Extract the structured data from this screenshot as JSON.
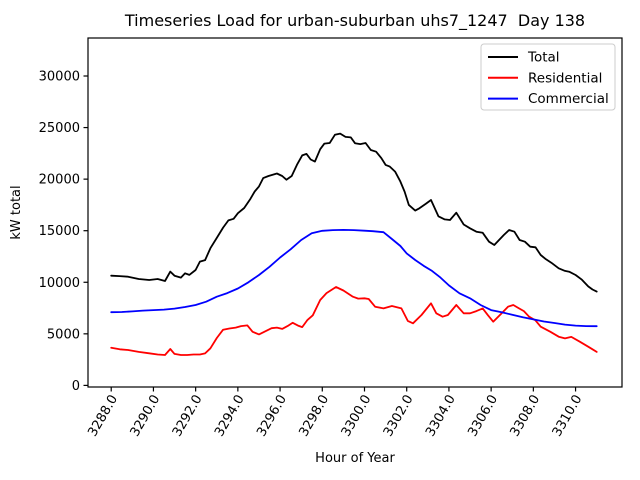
{
  "chart_data": {
    "type": "line",
    "title": "Timeseries Load for urban-suburban uhs7_1247  Day 138",
    "xlabel": "Hour of Year",
    "ylabel": "kW total",
    "xlim": [
      3286.9,
      3312.2
    ],
    "ylim": [
      -155,
      33685
    ],
    "grid": false,
    "x_ticks": [
      3288,
      3290,
      3292,
      3294,
      3296,
      3298,
      3300,
      3302,
      3304,
      3306,
      3308,
      3310
    ],
    "x_tick_labels": [
      "3288.0",
      "3290.0",
      "3292.0",
      "3294.0",
      "3296.0",
      "3298.0",
      "3300.0",
      "3302.0",
      "3304.0",
      "3306.0",
      "3308.0",
      "3310.0"
    ],
    "y_ticks": [
      0,
      5000,
      10000,
      15000,
      20000,
      25000,
      30000
    ],
    "y_tick_labels": [
      "0",
      "5000",
      "10000",
      "15000",
      "20000",
      "25000",
      "30000"
    ],
    "legend": {
      "position": "upper right",
      "entries": [
        "Total",
        "Residential",
        "Commercial"
      ]
    },
    "series": [
      {
        "name": "Total",
        "color": "#000000",
        "points": [
          [
            3288,
            10640
          ],
          [
            3288.4,
            10600
          ],
          [
            3288.8,
            10540
          ],
          [
            3289.3,
            10320
          ],
          [
            3289.8,
            10220
          ],
          [
            3290.2,
            10320
          ],
          [
            3290.55,
            10120
          ],
          [
            3290.8,
            11030
          ],
          [
            3291,
            10640
          ],
          [
            3291.3,
            10450
          ],
          [
            3291.5,
            10870
          ],
          [
            3291.7,
            10710
          ],
          [
            3292,
            11190
          ],
          [
            3292.2,
            12000
          ],
          [
            3292.45,
            12150
          ],
          [
            3292.7,
            13300
          ],
          [
            3293,
            14300
          ],
          [
            3293.3,
            15300
          ],
          [
            3293.55,
            16000
          ],
          [
            3293.8,
            16150
          ],
          [
            3294,
            16700
          ],
          [
            3294.3,
            17200
          ],
          [
            3294.6,
            18100
          ],
          [
            3294.8,
            18800
          ],
          [
            3295,
            19300
          ],
          [
            3295.2,
            20100
          ],
          [
            3295.45,
            20300
          ],
          [
            3295.85,
            20550
          ],
          [
            3296.1,
            20300
          ],
          [
            3296.3,
            19950
          ],
          [
            3296.55,
            20300
          ],
          [
            3296.8,
            21400
          ],
          [
            3297.05,
            22300
          ],
          [
            3297.25,
            22450
          ],
          [
            3297.45,
            21900
          ],
          [
            3297.65,
            21700
          ],
          [
            3297.9,
            22900
          ],
          [
            3298.1,
            23450
          ],
          [
            3298.35,
            23500
          ],
          [
            3298.6,
            24300
          ],
          [
            3298.85,
            24420
          ],
          [
            3299.1,
            24100
          ],
          [
            3299.35,
            24050
          ],
          [
            3299.55,
            23480
          ],
          [
            3299.8,
            23400
          ],
          [
            3300.05,
            23500
          ],
          [
            3300.3,
            22830
          ],
          [
            3300.55,
            22660
          ],
          [
            3300.8,
            22030
          ],
          [
            3301,
            21380
          ],
          [
            3301.2,
            21215
          ],
          [
            3301.45,
            20730
          ],
          [
            3301.7,
            19760
          ],
          [
            3301.9,
            18790
          ],
          [
            3302.1,
            17500
          ],
          [
            3302.4,
            16950
          ],
          [
            3302.6,
            17170
          ],
          [
            3302.9,
            17600
          ],
          [
            3303.15,
            17980
          ],
          [
            3303.5,
            16400
          ],
          [
            3303.8,
            16100
          ],
          [
            3304.05,
            16040
          ],
          [
            3304.35,
            16750
          ],
          [
            3304.7,
            15600
          ],
          [
            3305,
            15235
          ],
          [
            3305.3,
            14905
          ],
          [
            3305.6,
            14800
          ],
          [
            3305.9,
            13935
          ],
          [
            3306.15,
            13615
          ],
          [
            3306.6,
            14585
          ],
          [
            3306.85,
            15070
          ],
          [
            3307.1,
            14905
          ],
          [
            3307.35,
            14100
          ],
          [
            3307.6,
            13935
          ],
          [
            3307.85,
            13450
          ],
          [
            3308.1,
            13390
          ],
          [
            3308.35,
            12645
          ],
          [
            3308.6,
            12230
          ],
          [
            3308.85,
            11900
          ],
          [
            3309.2,
            11355
          ],
          [
            3309.5,
            11100
          ],
          [
            3309.7,
            11025
          ],
          [
            3310,
            10700
          ],
          [
            3310.3,
            10250
          ],
          [
            3310.6,
            9600
          ],
          [
            3310.8,
            9300
          ],
          [
            3311,
            9100
          ]
        ]
      },
      {
        "name": "Residential",
        "color": "#ff0000",
        "points": [
          [
            3288,
            3650
          ],
          [
            3288.4,
            3500
          ],
          [
            3288.8,
            3430
          ],
          [
            3289.3,
            3250
          ],
          [
            3289.8,
            3110
          ],
          [
            3290.2,
            3000
          ],
          [
            3290.55,
            2950
          ],
          [
            3290.8,
            3530
          ],
          [
            3291,
            3050
          ],
          [
            3291.3,
            2950
          ],
          [
            3291.6,
            2950
          ],
          [
            3291.9,
            3000
          ],
          [
            3292.2,
            3000
          ],
          [
            3292.45,
            3100
          ],
          [
            3292.7,
            3600
          ],
          [
            3293,
            4600
          ],
          [
            3293.3,
            5400
          ],
          [
            3293.6,
            5520
          ],
          [
            3293.9,
            5600
          ],
          [
            3294.15,
            5750
          ],
          [
            3294.45,
            5820
          ],
          [
            3294.7,
            5200
          ],
          [
            3295,
            4950
          ],
          [
            3295.3,
            5250
          ],
          [
            3295.6,
            5550
          ],
          [
            3295.85,
            5600
          ],
          [
            3296.1,
            5480
          ],
          [
            3296.35,
            5750
          ],
          [
            3296.6,
            6070
          ],
          [
            3296.85,
            5800
          ],
          [
            3297.05,
            5650
          ],
          [
            3297.3,
            6350
          ],
          [
            3297.55,
            6800
          ],
          [
            3297.9,
            8280
          ],
          [
            3298.2,
            8950
          ],
          [
            3298.65,
            9540
          ],
          [
            3299,
            9200
          ],
          [
            3299.45,
            8600
          ],
          [
            3299.7,
            8420
          ],
          [
            3300,
            8450
          ],
          [
            3300.2,
            8380
          ],
          [
            3300.5,
            7630
          ],
          [
            3300.9,
            7470
          ],
          [
            3301.3,
            7700
          ],
          [
            3301.75,
            7470
          ],
          [
            3302.05,
            6250
          ],
          [
            3302.3,
            6020
          ],
          [
            3302.7,
            6830
          ],
          [
            3303.15,
            7960
          ],
          [
            3303.4,
            6990
          ],
          [
            3303.7,
            6660
          ],
          [
            3303.95,
            6830
          ],
          [
            3304.35,
            7800
          ],
          [
            3304.7,
            6990
          ],
          [
            3305,
            6990
          ],
          [
            3305.3,
            7200
          ],
          [
            3305.6,
            7470
          ],
          [
            3305.85,
            6800
          ],
          [
            3306.1,
            6175
          ],
          [
            3306.5,
            7000
          ],
          [
            3306.8,
            7630
          ],
          [
            3307.05,
            7800
          ],
          [
            3307.3,
            7500
          ],
          [
            3307.55,
            7200
          ],
          [
            3307.8,
            6660
          ],
          [
            3308.1,
            6300
          ],
          [
            3308.35,
            5690
          ],
          [
            3308.8,
            5210
          ],
          [
            3309.2,
            4720
          ],
          [
            3309.5,
            4560
          ],
          [
            3309.8,
            4700
          ],
          [
            3310.2,
            4240
          ],
          [
            3310.6,
            3750
          ],
          [
            3310.8,
            3500
          ],
          [
            3311,
            3250
          ]
        ]
      },
      {
        "name": "Commercial",
        "color": "#0000ff",
        "points": [
          [
            3288,
            7100
          ],
          [
            3288.5,
            7120
          ],
          [
            3289,
            7180
          ],
          [
            3289.5,
            7250
          ],
          [
            3290,
            7300
          ],
          [
            3290.5,
            7350
          ],
          [
            3291,
            7450
          ],
          [
            3291.5,
            7600
          ],
          [
            3292,
            7800
          ],
          [
            3292.5,
            8120
          ],
          [
            3293,
            8600
          ],
          [
            3293.5,
            8950
          ],
          [
            3294,
            9400
          ],
          [
            3294.5,
            10000
          ],
          [
            3295,
            10700
          ],
          [
            3295.5,
            11500
          ],
          [
            3296,
            12400
          ],
          [
            3296.5,
            13200
          ],
          [
            3297,
            14100
          ],
          [
            3297.5,
            14750
          ],
          [
            3298,
            14990
          ],
          [
            3298.5,
            15060
          ],
          [
            3299,
            15080
          ],
          [
            3299.5,
            15060
          ],
          [
            3300,
            15000
          ],
          [
            3300.4,
            14950
          ],
          [
            3300.9,
            14850
          ],
          [
            3301.3,
            14200
          ],
          [
            3301.7,
            13520
          ],
          [
            3302,
            12800
          ],
          [
            3302.4,
            12160
          ],
          [
            3302.8,
            11600
          ],
          [
            3303.2,
            11100
          ],
          [
            3303.6,
            10450
          ],
          [
            3304,
            9700
          ],
          [
            3304.5,
            8930
          ],
          [
            3305,
            8450
          ],
          [
            3305.5,
            7800
          ],
          [
            3306,
            7300
          ],
          [
            3306.5,
            7100
          ],
          [
            3307,
            6850
          ],
          [
            3307.5,
            6600
          ],
          [
            3308,
            6400
          ],
          [
            3308.5,
            6200
          ],
          [
            3309,
            6050
          ],
          [
            3309.5,
            5900
          ],
          [
            3310,
            5800
          ],
          [
            3310.5,
            5750
          ],
          [
            3311,
            5740
          ]
        ]
      }
    ]
  }
}
